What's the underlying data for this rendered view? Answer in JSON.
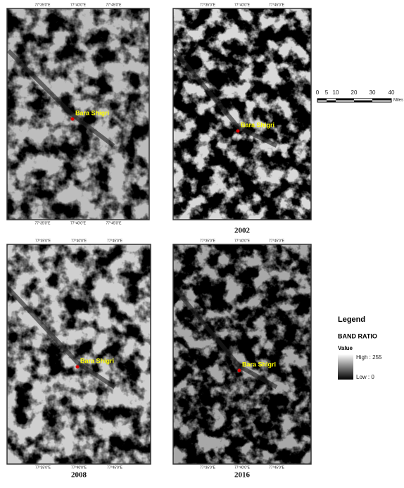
{
  "panels": [
    {
      "place": "Bara Shigri",
      "top_labels": [
        "77°35'0\"E",
        "77°40'0\"E",
        "77°45'0\"E"
      ],
      "bottom_labels": [
        "77°35'0\"E",
        "77°40'0\"E",
        "77°45'0\"E"
      ]
    },
    {
      "place": "Bara Shigri",
      "year": "2002",
      "top_labels": [
        "77°35'0\"E",
        "77°40'0\"E",
        "77°45'0\"E"
      ]
    },
    {
      "place": "Bara Shigri",
      "year": "2008",
      "top_labels": [
        "77°35'0\"E",
        "77°40'0\"E",
        "77°45'0\"E"
      ],
      "bottom_labels": [
        "77°35'0\"E",
        "77°40'0\"E",
        "77°45'0\"E"
      ]
    },
    {
      "place": "Bara Shigri",
      "year": "2016",
      "top_labels": [
        "77°35'0\"E",
        "77°40'0\"E",
        "77°45'0\"E"
      ],
      "bottom_labels": [
        "77°35'0\"E",
        "77°40'0\"E",
        "77°45'0\"E"
      ]
    }
  ],
  "scale_bar": {
    "ticks": [
      "0",
      "5",
      "10",
      "20",
      "30",
      "40"
    ],
    "unit": "Miles"
  },
  "legend": {
    "title": "Legend",
    "layer": "BAND RATIO",
    "field": "Value",
    "high": "High : 255",
    "low": "Low : 0"
  }
}
